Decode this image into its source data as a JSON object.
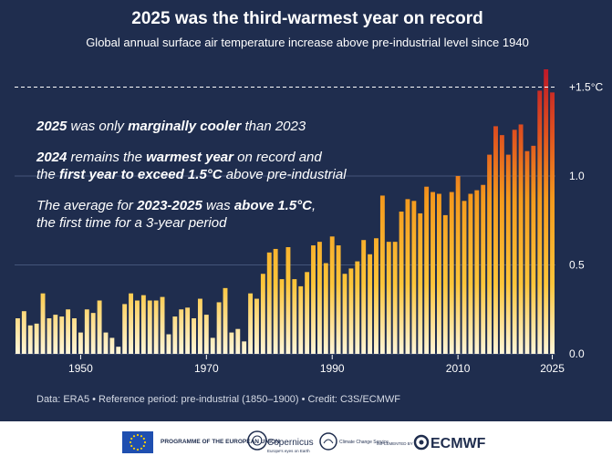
{
  "header": {
    "title": "2025 was the third-warmest year on record",
    "subtitle": "Global annual surface air temperature increase above pre-industrial level since 1940"
  },
  "annotations": {
    "line1": [
      {
        "text": "2025",
        "bold": true
      },
      {
        "text": " was only ",
        "bold": false
      },
      {
        "text": "marginally cooler",
        "bold": true
      },
      {
        "text": " than 2023",
        "bold": false
      }
    ],
    "line2": [
      {
        "text": "2024",
        "bold": true
      },
      {
        "text": " remains the ",
        "bold": false
      },
      {
        "text": "warmest year",
        "bold": true
      },
      {
        "text": " on record and",
        "bold": false
      }
    ],
    "line3": [
      {
        "text": "the ",
        "bold": false
      },
      {
        "text": "first year to exceed 1.5°C",
        "bold": true
      },
      {
        "text": " above pre-industrial",
        "bold": false
      }
    ],
    "line4": [
      {
        "text": "The average for ",
        "bold": false
      },
      {
        "text": "2023-2025",
        "bold": true
      },
      {
        "text": " was ",
        "bold": false
      },
      {
        "text": "above 1.5°C",
        "bold": true
      },
      {
        "text": ",",
        "bold": false
      }
    ],
    "line5": [
      {
        "text": "the first time for a 3-year period",
        "bold": false
      }
    ]
  },
  "footer": {
    "credit": "Data: ERA5 • Reference period: pre-industrial (1850–1900) • Credit: C3S/ECMWF"
  },
  "logos": {
    "eu": "PROGRAMME OF THE EUROPEAN UNION",
    "copernicus": "Copernicus",
    "copernicus_sub": "Europe's eyes on Earth",
    "c3s": "Climate Change Service",
    "implemented_by": "IMPLEMENTED BY",
    "ecmwf": "ECMWF"
  },
  "colors": {
    "background": "#1f2d4e",
    "bar_low": "#fff3c7",
    "bar_mid": "#f5a623",
    "bar_high": "#c0202a"
  },
  "chart_data": {
    "type": "bar",
    "title": "2025 was the third-warmest year on record",
    "subtitle": "Global annual surface air temperature increase above pre-industrial level since 1940",
    "x": [
      1940,
      1941,
      1942,
      1943,
      1944,
      1945,
      1946,
      1947,
      1948,
      1949,
      1950,
      1951,
      1952,
      1953,
      1954,
      1955,
      1956,
      1957,
      1958,
      1959,
      1960,
      1961,
      1962,
      1963,
      1964,
      1965,
      1966,
      1967,
      1968,
      1969,
      1970,
      1971,
      1972,
      1973,
      1974,
      1975,
      1976,
      1977,
      1978,
      1979,
      1980,
      1981,
      1982,
      1983,
      1984,
      1985,
      1986,
      1987,
      1988,
      1989,
      1990,
      1991,
      1992,
      1993,
      1994,
      1995,
      1996,
      1997,
      1998,
      1999,
      2000,
      2001,
      2002,
      2003,
      2004,
      2005,
      2006,
      2007,
      2008,
      2009,
      2010,
      2011,
      2012,
      2013,
      2014,
      2015,
      2016,
      2017,
      2018,
      2019,
      2020,
      2021,
      2022,
      2023,
      2024,
      2025
    ],
    "values": [
      0.2,
      0.24,
      0.16,
      0.17,
      0.34,
      0.2,
      0.22,
      0.21,
      0.25,
      0.2,
      0.12,
      0.25,
      0.23,
      0.3,
      0.12,
      0.09,
      0.04,
      0.28,
      0.34,
      0.3,
      0.33,
      0.3,
      0.3,
      0.32,
      0.11,
      0.21,
      0.25,
      0.26,
      0.2,
      0.31,
      0.22,
      0.09,
      0.29,
      0.37,
      0.12,
      0.14,
      0.07,
      0.34,
      0.31,
      0.45,
      0.57,
      0.59,
      0.42,
      0.6,
      0.42,
      0.38,
      0.46,
      0.61,
      0.63,
      0.51,
      0.66,
      0.61,
      0.45,
      0.48,
      0.52,
      0.64,
      0.56,
      0.65,
      0.89,
      0.63,
      0.63,
      0.8,
      0.87,
      0.86,
      0.79,
      0.94,
      0.91,
      0.9,
      0.78,
      0.91,
      1.0,
      0.86,
      0.9,
      0.92,
      0.95,
      1.12,
      1.28,
      1.23,
      1.12,
      1.26,
      1.29,
      1.14,
      1.17,
      1.48,
      1.6,
      1.47
    ],
    "xticks": [
      1950,
      1970,
      1990,
      2010,
      2025
    ],
    "yticks": [
      0.0,
      0.5,
      1.0
    ],
    "ytick_labels": [
      "0.0",
      "0.5",
      "1.0"
    ],
    "reference_line": {
      "value": 1.5,
      "label": "+1.5°C"
    },
    "ylim": [
      0,
      1.6
    ],
    "grid": true
  }
}
